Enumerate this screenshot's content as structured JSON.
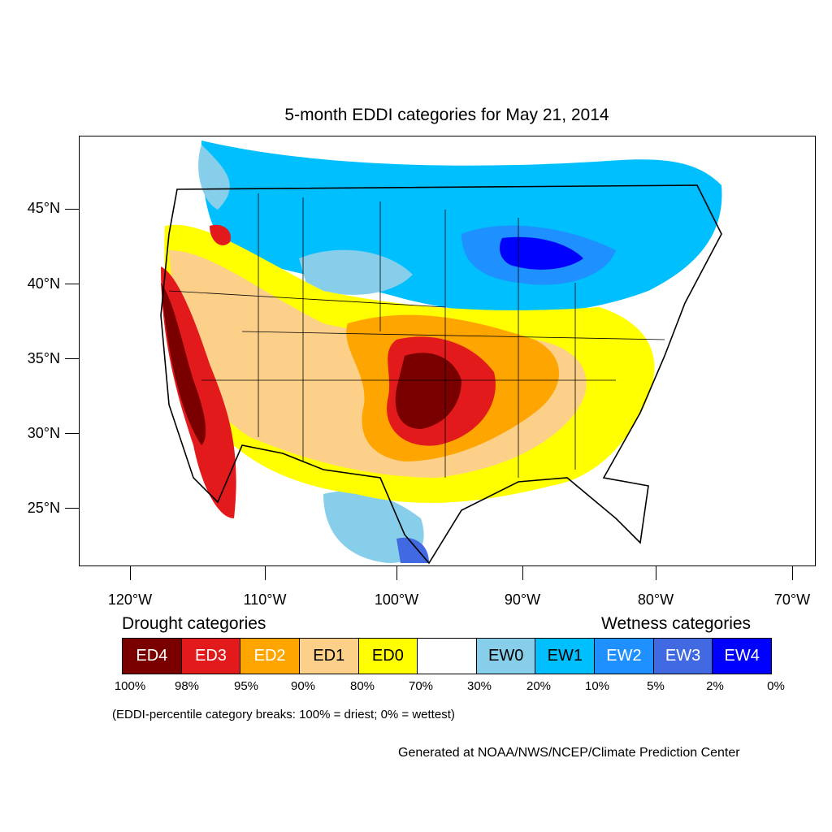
{
  "title": "5-month EDDI categories for May 21, 2014",
  "lat_labels": [
    "45°N",
    "40°N",
    "35°N",
    "30°N",
    "25°N"
  ],
  "lon_labels": [
    "120°W",
    "110°W",
    "100°W",
    "90°W",
    "80°W",
    "70°W"
  ],
  "drought_heading": "Drought categories",
  "wetness_heading": "Wetness categories",
  "legend": [
    {
      "label": "ED4",
      "color": "#7a0000",
      "text_color": "#ffffff"
    },
    {
      "label": "ED3",
      "color": "#e31a1c",
      "text_color": "#ffffff"
    },
    {
      "label": "ED2",
      "color": "#ffa500",
      "text_color": "#ffffff"
    },
    {
      "label": "ED1",
      "color": "#fdd08a",
      "text_color": "#000000"
    },
    {
      "label": "ED0",
      "color": "#ffff00",
      "text_color": "#000000"
    },
    {
      "label": "",
      "color": "#ffffff",
      "text_color": "#000000"
    },
    {
      "label": "EW0",
      "color": "#87ceeb",
      "text_color": "#000000"
    },
    {
      "label": "EW1",
      "color": "#00bfff",
      "text_color": "#000000"
    },
    {
      "label": "EW2",
      "color": "#1e90ff",
      "text_color": "#ffffff"
    },
    {
      "label": "EW3",
      "color": "#4169e1",
      "text_color": "#ffffff"
    },
    {
      "label": "EW4",
      "color": "#0000ff",
      "text_color": "#ffffff"
    }
  ],
  "percent_breaks": [
    "100%",
    "98%",
    "95%",
    "90%",
    "80%",
    "70%",
    "30%",
    "20%",
    "10%",
    "5%",
    "2%",
    "0%"
  ],
  "note": "(EDDI-percentile category breaks: 100% = driest; 0% = wettest)",
  "credit": "Generated at NOAA/NWS/NCEP/Climate Prediction Center"
}
